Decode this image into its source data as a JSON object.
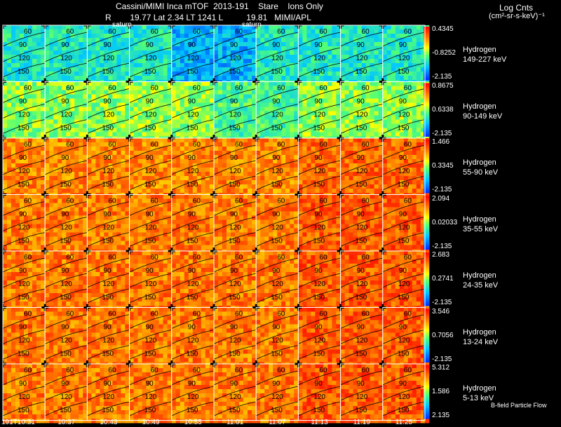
{
  "header": {
    "title": "Cassini/MIMI Inca mTOF  2013-191    Stare    Ions Only",
    "subtitle": "R        19.77 Lat 2.34 LT 1241 L          19.81   MIMI/APL",
    "units_title": "Log Cnts",
    "units_sub": "(cm²-sr-s-keV)⁻¹",
    "saturn_label": "saturn"
  },
  "palette": {
    "low": "#0033ff",
    "mid_low": "#00c8ff",
    "mid": "#ffff00",
    "high": "#ff5a00",
    "max": "#ff0000"
  },
  "rows": [
    {
      "species": "Hydrogen",
      "energy": "149-227 keV",
      "cmax": "0.4345",
      "cmid": "-0.8252",
      "cmin": "-2.135",
      "level": 0.35
    },
    {
      "species": "Hydrogen",
      "energy": "90-149 keV",
      "cmax": "0.8675",
      "cmid": "0.6338",
      "cmin": "-2.135",
      "level": 0.5
    },
    {
      "species": "Hydrogen",
      "energy": "55-90 keV",
      "cmax": "1.466",
      "cmid": "0.3345",
      "cmin": "-2.135",
      "level": 0.78
    },
    {
      "species": "Hydrogen",
      "energy": "35-55 keV",
      "cmax": "2.094",
      "cmid": "0.02033",
      "cmin": "-2.135",
      "level": 0.8
    },
    {
      "species": "Hydrogen",
      "energy": "24-35 keV",
      "cmax": "2.683",
      "cmid": "0.2741",
      "cmin": "-2.135",
      "level": 0.8
    },
    {
      "species": "Hydrogen",
      "energy": "13-24 keV",
      "cmax": "3.546",
      "cmid": "0.7056",
      "cmin": "-2.135",
      "level": 0.8
    },
    {
      "species": "Hydrogen",
      "energy": "5-13 keV",
      "cmax": "5.312",
      "cmid": "1.586",
      "cmin": "2.135",
      "level": 0.8
    }
  ],
  "angle_labels": [
    "60",
    "90",
    "120",
    "150"
  ],
  "times": [
    "191T10:31",
    "10:37",
    "10:43",
    "10:49",
    "10:55",
    "11:01",
    "11:07",
    "11:13",
    "11:19",
    "11:25"
  ],
  "footer": {
    "flow_label": "B-field Particle Flow"
  }
}
